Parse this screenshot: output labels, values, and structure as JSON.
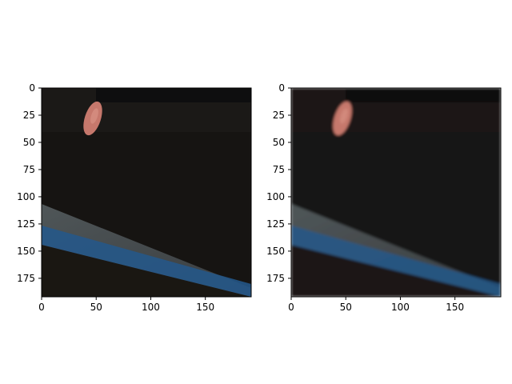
{
  "figure": {
    "panel_count": 2,
    "panels": [
      {
        "name": "left-image-panel",
        "image_style": "sharp",
        "x_ticks": [
          "0",
          "50",
          "100",
          "150"
        ],
        "y_ticks": [
          "0",
          "25",
          "50",
          "75",
          "100",
          "125",
          "150",
          "175"
        ]
      },
      {
        "name": "right-image-panel",
        "image_style": "blurred",
        "x_ticks": [
          "0",
          "50",
          "100",
          "150"
        ],
        "y_ticks": [
          "0",
          "25",
          "50",
          "75",
          "100",
          "125",
          "150",
          "175"
        ]
      }
    ],
    "colors": {
      "background": "#ffffff",
      "axis": "#000000",
      "dark_scene": "#161412",
      "blue_band": "#24588a",
      "gray_band": "#4e5456",
      "finger": "#c6786c"
    }
  }
}
